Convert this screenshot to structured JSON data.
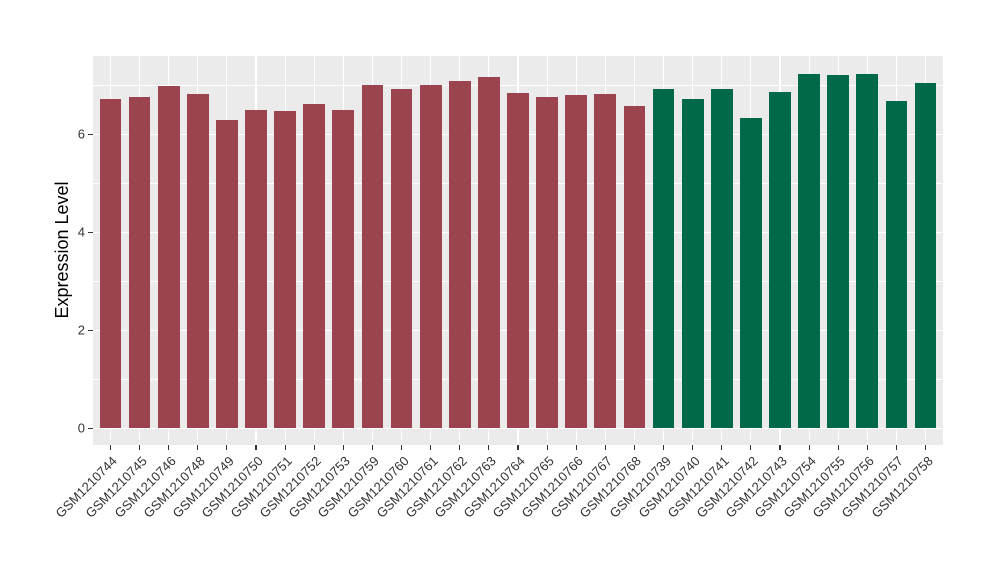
{
  "chart_data": {
    "type": "bar",
    "title": "",
    "xlabel": "",
    "ylabel": "Expression Level",
    "categories": [
      "GSM1210744",
      "GSM1210745",
      "GSM1210746",
      "GSM1210748",
      "GSM1210749",
      "GSM1210750",
      "GSM1210751",
      "GSM1210752",
      "GSM1210753",
      "GSM1210759",
      "GSM1210760",
      "GSM1210761",
      "GSM1210762",
      "GSM1210763",
      "GSM1210764",
      "GSM1210765",
      "GSM1210766",
      "GSM1210767",
      "GSM1210768",
      "GSM1210739",
      "GSM1210740",
      "GSM1210741",
      "GSM1210742",
      "GSM1210743",
      "GSM1210754",
      "GSM1210755",
      "GSM1210756",
      "GSM1210757",
      "GSM1210758"
    ],
    "values": [
      6.72,
      6.76,
      6.99,
      6.83,
      6.3,
      6.5,
      6.48,
      6.62,
      6.5,
      7.0,
      6.93,
      7.01,
      7.08,
      7.17,
      6.85,
      6.77,
      6.8,
      6.83,
      6.58,
      6.93,
      6.72,
      6.93,
      6.34,
      6.87,
      7.23,
      7.21,
      7.23,
      6.68,
      7.05
    ],
    "groups": [
      {
        "name": "group-1",
        "color": "#9B4450",
        "count": 19
      },
      {
        "name": "group-2",
        "color": "#01684A",
        "count": 10
      }
    ],
    "y_major_ticks": [
      0,
      2,
      4,
      6
    ],
    "y_minor_gridlines": [
      1,
      3,
      5,
      7
    ],
    "ylim": [
      -0.34,
      7.6
    ],
    "grid": true,
    "legend": "none",
    "colors": {
      "panel_background": "#EBEBEB",
      "gridline": "#FFFFFF",
      "axis_text": "#333333",
      "axis_title": "#000000",
      "tick_mark": "#333333"
    }
  }
}
